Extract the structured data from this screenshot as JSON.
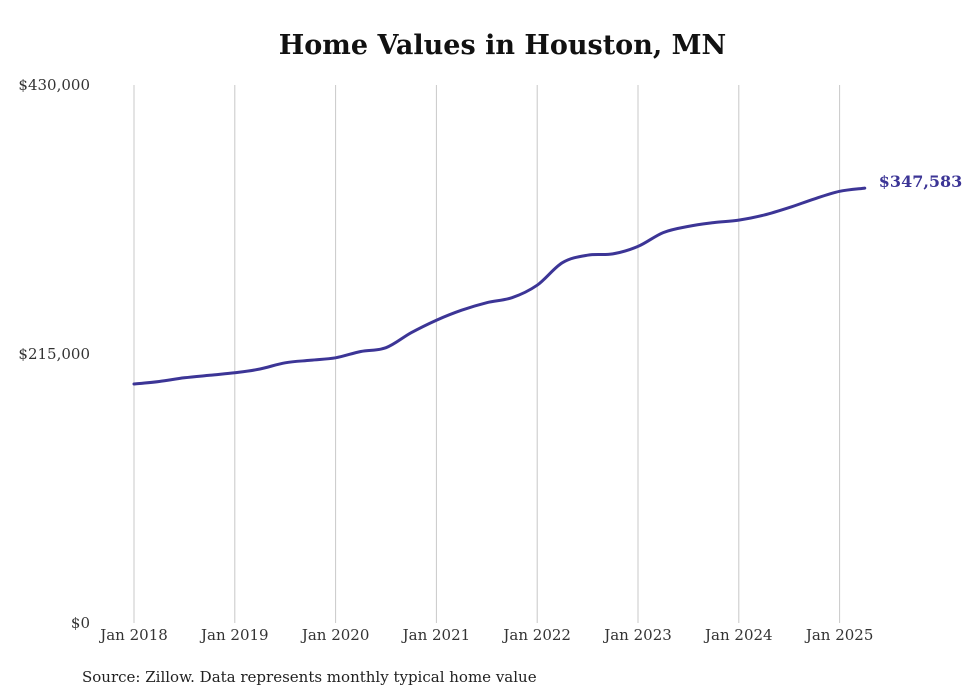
{
  "chart_data": {
    "type": "line",
    "title": "Home Values in Houston, MN",
    "source_note": "Source: Zillow. Data represents monthly typical home value",
    "ylim": [
      0,
      430000
    ],
    "y_ticks": [
      {
        "value": 0,
        "label": "$0"
      },
      {
        "value": 215000,
        "label": "$215,000"
      },
      {
        "value": 430000,
        "label": "$430,000"
      }
    ],
    "x_ticks": [
      {
        "value": "2018-01",
        "label": "Jan 2018"
      },
      {
        "value": "2019-01",
        "label": "Jan 2019"
      },
      {
        "value": "2020-01",
        "label": "Jan 2020"
      },
      {
        "value": "2021-01",
        "label": "Jan 2021"
      },
      {
        "value": "2022-01",
        "label": "Jan 2022"
      },
      {
        "value": "2023-01",
        "label": "Jan 2023"
      },
      {
        "value": "2024-01",
        "label": "Jan 2024"
      },
      {
        "value": "2025-01",
        "label": "Jan 2025"
      }
    ],
    "grid": {
      "vertical": true,
      "horizontal": false
    },
    "line_color": "#3c3596",
    "end_label": "$347,583",
    "series": [
      {
        "x": [
          "2018-01",
          "2018-04",
          "2018-07",
          "2018-10",
          "2019-01",
          "2019-04",
          "2019-07",
          "2019-10",
          "2020-01",
          "2020-04",
          "2020-07",
          "2020-10",
          "2021-01",
          "2021-04",
          "2021-07",
          "2021-10",
          "2022-01",
          "2022-04",
          "2022-07",
          "2022-10",
          "2023-01",
          "2023-04",
          "2023-07",
          "2023-10",
          "2024-01",
          "2024-04",
          "2024-07",
          "2024-10",
          "2025-01",
          "2025-04"
        ],
        "values": [
          191000,
          193000,
          196000,
          198000,
          200000,
          203000,
          208000,
          210000,
          212000,
          217000,
          220000,
          232000,
          242000,
          250000,
          256000,
          260000,
          270000,
          288000,
          294000,
          295000,
          301000,
          312000,
          317000,
          320000,
          322000,
          326000,
          332000,
          339000,
          345000,
          347583
        ]
      }
    ]
  }
}
